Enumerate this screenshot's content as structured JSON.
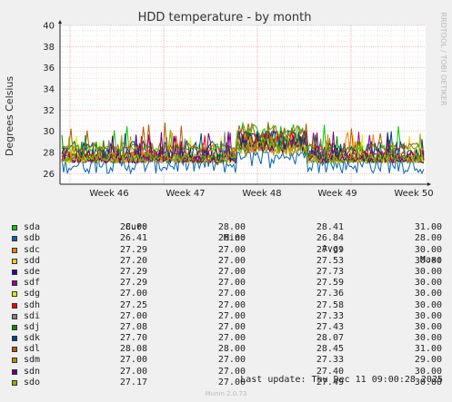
{
  "chart_data": {
    "type": "line",
    "title": "HDD temperature - by month",
    "ylabel": "Degrees Celsius",
    "side_label": "RRDTOOL / TOBI OETIKER",
    "ylim": [
      25,
      40
    ],
    "yticks": [
      26,
      28,
      30,
      32,
      34,
      36,
      38,
      40
    ],
    "xticks": [
      "Week 46",
      "Week 47",
      "Week 48",
      "Week 49",
      "Week 50"
    ],
    "grid": true,
    "legend_headers": {
      "cur": "Cur:",
      "min": "Min:",
      "avg": "Avg:",
      "max": "Max:"
    },
    "series": [
      {
        "name": "sda",
        "color": "#00cc00",
        "cur": "28.00",
        "min": "28.00",
        "avg": "28.41",
        "max": "31.00"
      },
      {
        "name": "sdb",
        "color": "#0066b3",
        "cur": "26.41",
        "min": "26.00",
        "avg": "26.84",
        "max": "28.00"
      },
      {
        "name": "sdc",
        "color": "#ff8000",
        "cur": "27.29",
        "min": "27.00",
        "avg": "27.69",
        "max": "30.00"
      },
      {
        "name": "sdd",
        "color": "#ffcc00",
        "cur": "27.20",
        "min": "27.00",
        "avg": "27.53",
        "max": "30.00"
      },
      {
        "name": "sde",
        "color": "#330099",
        "cur": "27.29",
        "min": "27.00",
        "avg": "27.73",
        "max": "30.00"
      },
      {
        "name": "sdf",
        "color": "#990099",
        "cur": "27.29",
        "min": "27.00",
        "avg": "27.59",
        "max": "30.00"
      },
      {
        "name": "sdg",
        "color": "#ccff00",
        "cur": "27.00",
        "min": "27.00",
        "avg": "27.36",
        "max": "30.00"
      },
      {
        "name": "sdh",
        "color": "#ff0000",
        "cur": "27.25",
        "min": "27.00",
        "avg": "27.58",
        "max": "30.00"
      },
      {
        "name": "sdi",
        "color": "#808080",
        "cur": "27.00",
        "min": "27.00",
        "avg": "27.33",
        "max": "30.00"
      },
      {
        "name": "sdj",
        "color": "#008f00",
        "cur": "27.08",
        "min": "27.00",
        "avg": "27.43",
        "max": "30.00"
      },
      {
        "name": "sdk",
        "color": "#00487d",
        "cur": "27.70",
        "min": "27.00",
        "avg": "28.07",
        "max": "30.00"
      },
      {
        "name": "sdl",
        "color": "#b35a00",
        "cur": "28.08",
        "min": "28.00",
        "avg": "28.45",
        "max": "31.00"
      },
      {
        "name": "sdm",
        "color": "#b38f00",
        "cur": "27.00",
        "min": "27.00",
        "avg": "27.33",
        "max": "29.00"
      },
      {
        "name": "sdn",
        "color": "#6b006b",
        "cur": "27.00",
        "min": "27.00",
        "avg": "27.40",
        "max": "30.00"
      },
      {
        "name": "sdo",
        "color": "#8fb300",
        "cur": "27.17",
        "min": "27.00",
        "avg": "27.49",
        "max": "30.00"
      }
    ]
  },
  "footer": {
    "last_update": "Last update: Thu Dec 11 09:00:28 2025",
    "version": "Munin 2.0.73"
  }
}
